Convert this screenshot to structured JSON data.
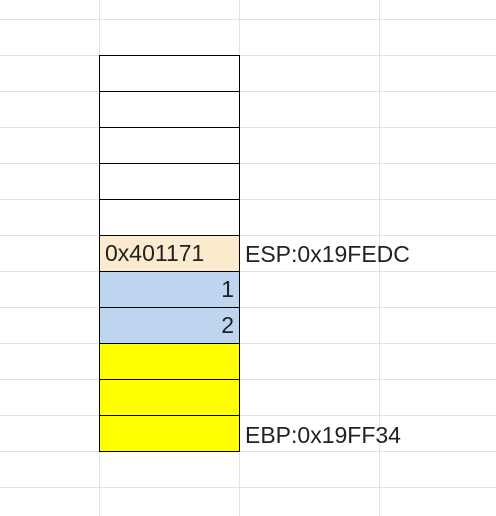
{
  "stack_cells": [
    {
      "text": "",
      "color": "#ffffff",
      "align": "left"
    },
    {
      "text": "",
      "color": "#ffffff",
      "align": "left"
    },
    {
      "text": "",
      "color": "#ffffff",
      "align": "left"
    },
    {
      "text": "",
      "color": "#ffffff",
      "align": "left"
    },
    {
      "text": "",
      "color": "#ffffff",
      "align": "left"
    },
    {
      "text": "0x401171",
      "color": "#fdebd0",
      "align": "left"
    },
    {
      "text": "1",
      "color": "#bdd5ee",
      "align": "right"
    },
    {
      "text": "2",
      "color": "#bdd5ee",
      "align": "right"
    },
    {
      "text": "",
      "color": "#ffff00",
      "align": "left"
    },
    {
      "text": "",
      "color": "#ffff00",
      "align": "left"
    },
    {
      "text": "",
      "color": "#ffff00",
      "align": "left"
    }
  ],
  "labels": {
    "esp": "ESP:0x19FEDC",
    "ebp": "EBP:0x19FF34"
  }
}
